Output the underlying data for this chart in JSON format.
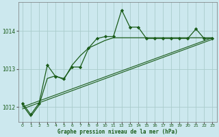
{
  "title": "Graphe pression niveau de la mer (hPa)",
  "bg_color": "#cce8ee",
  "line_color": "#1a5c1a",
  "grid_color": "#aacccc",
  "ylim": [
    1011.6,
    1014.75
  ],
  "xlim": [
    -0.5,
    23.5
  ],
  "yticks": [
    1012,
    1013,
    1014
  ],
  "xticks": [
    0,
    1,
    2,
    3,
    4,
    5,
    6,
    7,
    8,
    9,
    10,
    11,
    12,
    13,
    14,
    15,
    16,
    17,
    18,
    19,
    20,
    21,
    22,
    23
  ],
  "line1_x": [
    0,
    1,
    2,
    3,
    4,
    5,
    6,
    7,
    8,
    9,
    10,
    11,
    12,
    13,
    14,
    15,
    16,
    17,
    18,
    19,
    20,
    21,
    22,
    23
  ],
  "line1_y": [
    1012.1,
    1011.8,
    1012.1,
    1013.1,
    1012.8,
    1012.75,
    1013.05,
    1013.05,
    1013.55,
    1013.8,
    1013.85,
    1013.85,
    1014.55,
    1014.1,
    1014.1,
    1013.8,
    1013.8,
    1013.8,
    1013.8,
    1013.8,
    1013.8,
    1014.05,
    1013.8,
    1013.8
  ],
  "line2_x": [
    0,
    1,
    2,
    3,
    4,
    5,
    6,
    7,
    8,
    9,
    10,
    11,
    12,
    13,
    14,
    15,
    16,
    17,
    18,
    19,
    20,
    21,
    22,
    23
  ],
  "line2_y": [
    1012.05,
    1011.75,
    1012.05,
    1012.75,
    1012.82,
    1012.72,
    1013.1,
    1013.35,
    1013.55,
    1013.65,
    1013.75,
    1013.82,
    1013.82,
    1013.82,
    1013.82,
    1013.82,
    1013.82,
    1013.82,
    1013.82,
    1013.82,
    1013.82,
    1013.82,
    1013.82,
    1013.82
  ],
  "line3_x": [
    0,
    23
  ],
  "line3_y": [
    1012.0,
    1013.82
  ],
  "line4_x": [
    0,
    23
  ],
  "line4_y": [
    1011.95,
    1013.78
  ]
}
